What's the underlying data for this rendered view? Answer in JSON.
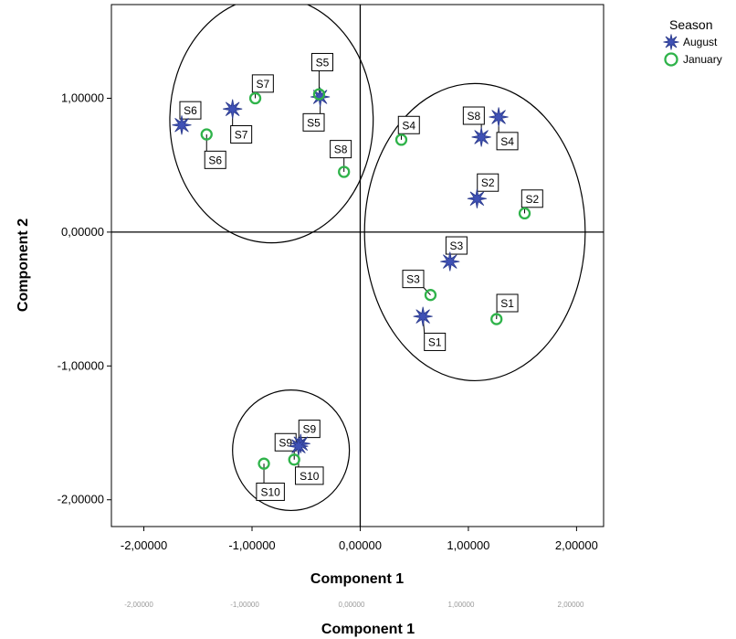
{
  "chart_data": {
    "type": "scatter",
    "xlabel": "Component 1",
    "ylabel": "Component 2",
    "xlim": [
      -2.3,
      2.25
    ],
    "ylim": [
      -2.2,
      1.7
    ],
    "x_ticks": [
      "-2,00000",
      "-1,00000",
      "0,00000",
      "1,00000",
      "2,00000"
    ],
    "x_tick_values": [
      -2,
      -1,
      0,
      1,
      2
    ],
    "y_ticks": [
      "1,00000",
      "0,00000",
      "-1,00000",
      "-2,00000"
    ],
    "y_tick_values": [
      1,
      0,
      -1,
      -2
    ],
    "legend": {
      "title": "Season",
      "position": "top-right",
      "entries": [
        "August",
        "January"
      ]
    },
    "colors": {
      "August": "#2b3a8c",
      "January": "#2fb34a"
    },
    "series": [
      {
        "name": "August",
        "marker": "star-icon",
        "points": [
          {
            "label": "S1",
            "x": 0.58,
            "y": -0.63
          },
          {
            "label": "S2",
            "x": 1.08,
            "y": 0.25
          },
          {
            "label": "S3",
            "x": 0.83,
            "y": -0.22
          },
          {
            "label": "S4",
            "x": 1.28,
            "y": 0.86
          },
          {
            "label": "S5",
            "x": -0.37,
            "y": 1.01
          },
          {
            "label": "S6",
            "x": -1.65,
            "y": 0.8
          },
          {
            "label": "S7",
            "x": -1.18,
            "y": 0.92
          },
          {
            "label": "S8",
            "x": 1.12,
            "y": 0.71
          },
          {
            "label": "S9",
            "x": -0.55,
            "y": -1.58
          },
          {
            "label": "S10",
            "x": -0.57,
            "y": -1.6
          }
        ]
      },
      {
        "name": "January",
        "marker": "circle-icon",
        "points": [
          {
            "label": "S1",
            "x": 1.26,
            "y": -0.65
          },
          {
            "label": "S2",
            "x": 1.52,
            "y": 0.14
          },
          {
            "label": "S3",
            "x": 0.65,
            "y": -0.47
          },
          {
            "label": "S4",
            "x": 0.38,
            "y": 0.69
          },
          {
            "label": "S5",
            "x": -0.38,
            "y": 1.03
          },
          {
            "label": "S6",
            "x": -1.42,
            "y": 0.73
          },
          {
            "label": "S7",
            "x": -0.97,
            "y": 1.0
          },
          {
            "label": "S8",
            "x": -0.15,
            "y": 0.45
          },
          {
            "label": "S9",
            "x": -0.61,
            "y": -1.7
          },
          {
            "label": "S10",
            "x": -0.89,
            "y": -1.73
          }
        ]
      }
    ],
    "clusters": [
      {
        "cx": -0.82,
        "cy": 0.84,
        "rx": 0.94,
        "ry": 0.92
      },
      {
        "cx": 1.06,
        "cy": 0.0,
        "rx": 1.02,
        "ry": 1.11
      },
      {
        "cx": -0.64,
        "cy": -1.63,
        "rx": 0.54,
        "ry": 0.45
      }
    ],
    "point_labels": [
      {
        "text": "S1",
        "series": "August",
        "point": 0,
        "dx": 0.11,
        "dy": -0.19
      },
      {
        "text": "S1",
        "series": "January",
        "point": 0,
        "dx": 0.1,
        "dy": 0.12
      },
      {
        "text": "S2",
        "series": "August",
        "point": 1,
        "dx": 0.1,
        "dy": 0.12
      },
      {
        "text": "S2",
        "series": "January",
        "point": 1,
        "dx": 0.07,
        "dy": 0.11
      },
      {
        "text": "S3",
        "series": "August",
        "point": 2,
        "dx": 0.06,
        "dy": 0.12
      },
      {
        "text": "S3",
        "series": "January",
        "point": 2,
        "dx": -0.16,
        "dy": 0.12
      },
      {
        "text": "S4",
        "series": "August",
        "point": 3,
        "dx": 0.08,
        "dy": -0.18
      },
      {
        "text": "S4",
        "series": "January",
        "point": 3,
        "dx": 0.07,
        "dy": 0.11
      },
      {
        "text": "S5",
        "series": "August",
        "point": 4,
        "dx": -0.06,
        "dy": -0.19
      },
      {
        "text": "S5",
        "series": "January",
        "point": 4,
        "dx": 0.03,
        "dy": 0.24
      },
      {
        "text": "S6",
        "series": "August",
        "point": 5,
        "dx": 0.08,
        "dy": 0.11
      },
      {
        "text": "S6",
        "series": "January",
        "point": 5,
        "dx": 0.08,
        "dy": -0.19
      },
      {
        "text": "S7",
        "series": "August",
        "point": 6,
        "dx": 0.08,
        "dy": -0.19
      },
      {
        "text": "S7",
        "series": "January",
        "point": 6,
        "dx": 0.07,
        "dy": 0.11
      },
      {
        "text": "S8",
        "series": "August",
        "point": 7,
        "dx": -0.07,
        "dy": 0.16
      },
      {
        "text": "S8",
        "series": "January",
        "point": 7,
        "dx": -0.03,
        "dy": 0.17
      },
      {
        "text": "S9",
        "series": "August",
        "point": 8,
        "dx": 0.08,
        "dy": 0.11
      },
      {
        "text": "S9",
        "series": "January",
        "point": 8,
        "dx": -0.08,
        "dy": 0.13
      },
      {
        "text": "S10",
        "series": "August",
        "point": 9,
        "dx": 0.1,
        "dy": -0.22
      },
      {
        "text": "S10",
        "series": "January",
        "point": 9,
        "dx": 0.06,
        "dy": -0.21
      }
    ]
  },
  "bottom_title": "Component 1",
  "bottom_ticks": [
    "-2,00000",
    "-1,00000",
    "0,00000",
    "1,00000",
    "2,00000"
  ]
}
